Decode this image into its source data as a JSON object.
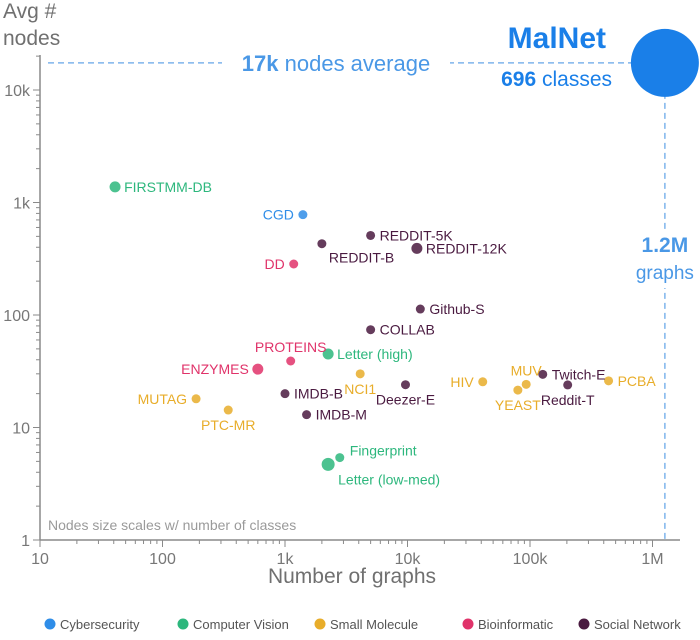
{
  "chart_data": {
    "type": "scatter",
    "title": "",
    "xlabel": "Number of graphs",
    "ylabel": "Avg # nodes",
    "xscale": "log",
    "yscale": "log",
    "xlim": [
      10,
      2000000
    ],
    "ylim": [
      1,
      25000
    ],
    "x_ticks": [
      {
        "value": 10,
        "label": "10"
      },
      {
        "value": 100,
        "label": "100"
      },
      {
        "value": 1000,
        "label": "1k"
      },
      {
        "value": 10000,
        "label": "10k"
      },
      {
        "value": 100000,
        "label": "100k"
      },
      {
        "value": 1000000,
        "label": "1M"
      }
    ],
    "y_ticks": [
      {
        "value": 1,
        "label": "1"
      },
      {
        "value": 10,
        "label": "10"
      },
      {
        "value": 100,
        "label": "100"
      },
      {
        "value": 1000,
        "label": "1k"
      },
      {
        "value": 10000,
        "label": "10k"
      }
    ],
    "categories": [
      {
        "name": "Cybersecurity",
        "color": "#2f8de8"
      },
      {
        "name": "Computer Vision",
        "color": "#2db77d"
      },
      {
        "name": "Small Molecule",
        "color": "#e8ad2a"
      },
      {
        "name": "Bioinformatic",
        "color": "#e0336a"
      },
      {
        "name": "Social Network",
        "color": "#4a1a40"
      }
    ],
    "points": [
      {
        "name": "FIRSTMM-DB",
        "x": 41,
        "y": 1377,
        "category": "Computer Vision",
        "label_pos": "right"
      },
      {
        "name": "CGD",
        "x": 1400,
        "y": 780,
        "category": "Cybersecurity",
        "label_pos": "left"
      },
      {
        "name": "REDDIT-5K",
        "x": 4999,
        "y": 509,
        "category": "Social Network",
        "label_pos": "right"
      },
      {
        "name": "REDDIT-B",
        "x": 2000,
        "y": 430,
        "category": "Social Network",
        "label_pos": "right-below"
      },
      {
        "name": "REDDIT-12K",
        "x": 11929,
        "y": 391,
        "category": "Social Network",
        "label_pos": "right"
      },
      {
        "name": "DD",
        "x": 1178,
        "y": 284,
        "category": "Bioinformatic",
        "label_pos": "left"
      },
      {
        "name": "Github-S",
        "x": 12725,
        "y": 113,
        "category": "Social Network",
        "label_pos": "right"
      },
      {
        "name": "COLLAB",
        "x": 5000,
        "y": 74,
        "category": "Social Network",
        "label_pos": "right"
      },
      {
        "name": "PROTEINS",
        "x": 1113,
        "y": 39,
        "category": "Bioinformatic",
        "label_pos": "above"
      },
      {
        "name": "Letter (high)",
        "x": 2250,
        "y": 45,
        "category": "Computer Vision",
        "label_pos": "right"
      },
      {
        "name": "ENZYMES",
        "x": 600,
        "y": 33,
        "category": "Bioinformatic",
        "label_pos": "left"
      },
      {
        "name": "NCI1",
        "x": 4110,
        "y": 30,
        "category": "Small Molecule",
        "label_pos": "below"
      },
      {
        "name": "IMDB-B",
        "x": 1000,
        "y": 20,
        "category": "Social Network",
        "label_pos": "right"
      },
      {
        "name": "Deezer-E",
        "x": 9629,
        "y": 24,
        "category": "Social Network",
        "label_pos": "below"
      },
      {
        "name": "HIV",
        "x": 41127,
        "y": 25.5,
        "category": "Small Molecule",
        "label_pos": "left"
      },
      {
        "name": "MUV",
        "x": 93087,
        "y": 24.2,
        "category": "Small Molecule",
        "label_pos": "above"
      },
      {
        "name": "YEAST",
        "x": 79601,
        "y": 21.5,
        "category": "Small Molecule",
        "label_pos": "below"
      },
      {
        "name": "Twitch-E",
        "x": 127094,
        "y": 29.7,
        "category": "Social Network",
        "label_pos": "right"
      },
      {
        "name": "Reddit-T",
        "x": 203088,
        "y": 23.9,
        "category": "Social Network",
        "label_pos": "below"
      },
      {
        "name": "PCBA",
        "x": 437929,
        "y": 26,
        "category": "Small Molecule",
        "label_pos": "right"
      },
      {
        "name": "MUTAG",
        "x": 188,
        "y": 18,
        "category": "Small Molecule",
        "label_pos": "left"
      },
      {
        "name": "PTC-MR",
        "x": 344,
        "y": 14.3,
        "category": "Small Molecule",
        "label_pos": "below"
      },
      {
        "name": "IMDB-M",
        "x": 1500,
        "y": 13,
        "category": "Social Network",
        "label_pos": "right"
      },
      {
        "name": "Fingerprint",
        "x": 2800,
        "y": 5.4,
        "category": "Computer Vision",
        "label_pos": "above-right"
      },
      {
        "name": "Letter (low-med)",
        "x": 2250,
        "y": 4.7,
        "category": "Computer Vision",
        "label_pos": "below-right"
      }
    ],
    "highlight": {
      "name": "MalNet",
      "classes_value": "696",
      "classes_text": "classes",
      "x": 1262024,
      "y": 17410,
      "color": "#1a7fe8",
      "avg_value": "17k",
      "avg_text": "nodes average",
      "graphs_value": "1.2M",
      "graphs_text": "graphs"
    },
    "note": "Nodes size scales w/ number of classes"
  }
}
